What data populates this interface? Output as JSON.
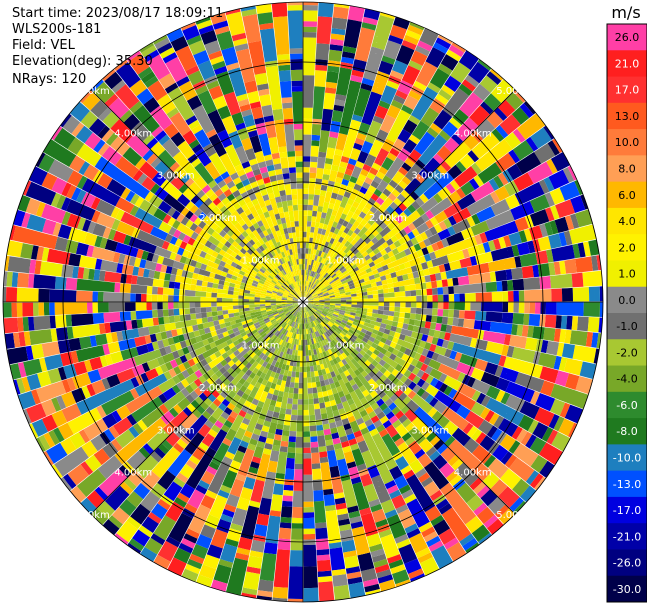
{
  "header": {
    "start_time": "Start time: 2023/08/17 18:09:11",
    "instrument": "WLS200s-181",
    "field": "Field: VEL",
    "elevation": "Elevation(deg): 35.30",
    "nrays": "NRays: 120"
  },
  "colorbar": {
    "unit": "m/s",
    "ticks": [
      "26.0",
      "21.0",
      "17.0",
      "13.0",
      "10.0",
      "8.0",
      "6.0",
      "4.0",
      "2.0",
      "1.0",
      "0.0",
      "-1.0",
      "-2.0",
      "-4.0",
      "-6.0",
      "-8.0",
      "-10.0",
      "-13.0",
      "-17.0",
      "-21.0",
      "-26.0",
      "-30.0"
    ],
    "colors": [
      "#ff3fa6",
      "#ff1f1f",
      "#ff3030",
      "#ff5a1f",
      "#ff7b3a",
      "#ff9f55",
      "#ffb800",
      "#ffe600",
      "#fff200",
      "#f0f000",
      "#8a8a8a",
      "#707070",
      "#a8c832",
      "#78a828",
      "#2e8b2e",
      "#1f7a1f",
      "#1e7fbf",
      "#0050ff",
      "#0000e0",
      "#0000a8",
      "#000080",
      "#00004a"
    ]
  },
  "chart_data": {
    "type": "heatmap",
    "title": "",
    "field": "VEL",
    "units": "m/s",
    "elevation_deg": 35.3,
    "n_rays": 120,
    "range_ring_labels": [
      "1.00km",
      "2.00km",
      "3.00km",
      "4.00km",
      "5.00km"
    ],
    "range_rings_km": [
      1,
      2,
      3,
      4,
      5,
      6,
      7
    ],
    "colorscale_min": -30.0,
    "colorscale_max": 26.0,
    "pattern": "near range (<3 km): yellow positive velocities to the north, green negative velocities to the south, gray near zero; far range: noisy full-spectrum values"
  }
}
